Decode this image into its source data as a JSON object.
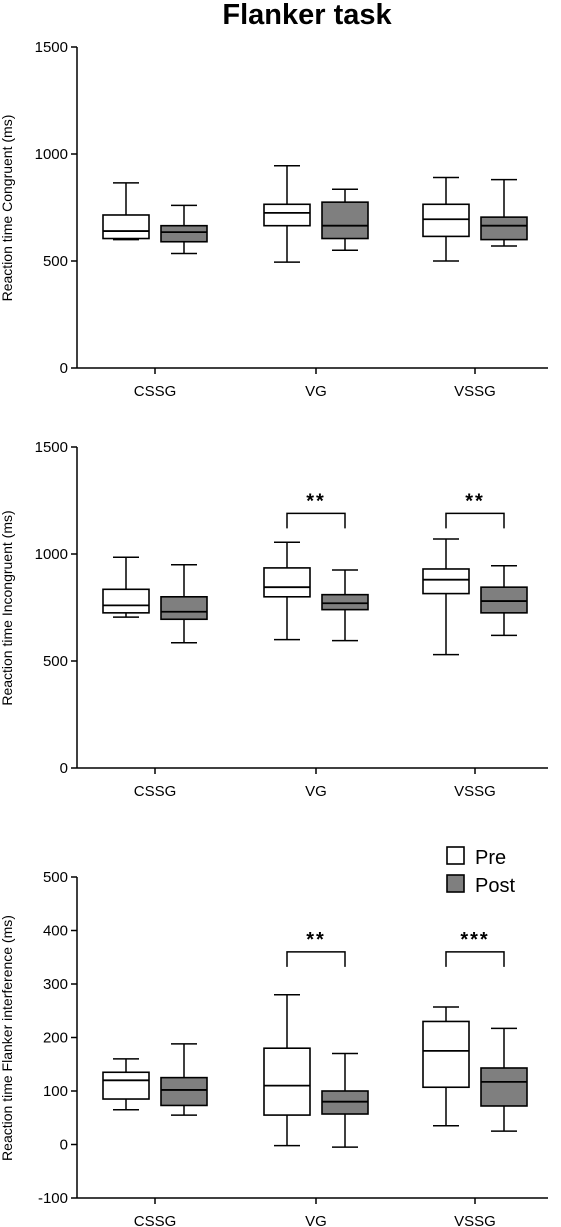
{
  "title": "Flanker task",
  "colors": {
    "pre": "#ffffff",
    "post": "#7f7f7f",
    "stroke": "#000000"
  },
  "legend": {
    "position": "top-right of bottom panel",
    "items": [
      {
        "label": "Pre",
        "color": "#ffffff"
      },
      {
        "label": "Post",
        "color": "#7f7f7f"
      }
    ]
  },
  "chart_data": [
    {
      "type": "boxplot",
      "ylabel": "Reaction time Congruent (ms)",
      "ylim": [
        0,
        1500
      ],
      "yticks": [
        0,
        500,
        1000,
        1500
      ],
      "categories": [
        "CSSG",
        "VG",
        "VSSG"
      ],
      "groups": [
        {
          "category": "CSSG",
          "pre": {
            "min": 600,
            "q1": 605,
            "median": 640,
            "q3": 715,
            "max": 865
          },
          "post": {
            "min": 535,
            "q1": 590,
            "median": 635,
            "q3": 665,
            "max": 760
          }
        },
        {
          "category": "VG",
          "pre": {
            "min": 495,
            "q1": 665,
            "median": 725,
            "q3": 765,
            "max": 945
          },
          "post": {
            "min": 550,
            "q1": 605,
            "median": 665,
            "q3": 775,
            "max": 835
          }
        },
        {
          "category": "VSSG",
          "pre": {
            "min": 500,
            "q1": 615,
            "median": 695,
            "q3": 765,
            "max": 890
          },
          "post": {
            "min": 570,
            "q1": 600,
            "median": 665,
            "q3": 705,
            "max": 880
          }
        }
      ],
      "significance": []
    },
    {
      "type": "boxplot",
      "ylabel": "Reaction time Incongruent (ms)",
      "ylim": [
        0,
        1500
      ],
      "yticks": [
        0,
        500,
        1000,
        1500
      ],
      "categories": [
        "CSSG",
        "VG",
        "VSSG"
      ],
      "groups": [
        {
          "category": "CSSG",
          "pre": {
            "min": 705,
            "q1": 725,
            "median": 760,
            "q3": 835,
            "max": 985
          },
          "post": {
            "min": 585,
            "q1": 695,
            "median": 730,
            "q3": 800,
            "max": 950
          }
        },
        {
          "category": "VG",
          "pre": {
            "min": 600,
            "q1": 800,
            "median": 845,
            "q3": 935,
            "max": 1055
          },
          "post": {
            "min": 595,
            "q1": 740,
            "median": 770,
            "q3": 810,
            "max": 925
          }
        },
        {
          "category": "VSSG",
          "pre": {
            "min": 530,
            "q1": 815,
            "median": 880,
            "q3": 930,
            "max": 1070
          },
          "post": {
            "min": 620,
            "q1": 725,
            "median": 780,
            "q3": 845,
            "max": 945
          }
        }
      ],
      "significance": [
        {
          "category": "VG",
          "label": "**",
          "y": 1190
        },
        {
          "category": "VSSG",
          "label": "**",
          "y": 1190
        }
      ]
    },
    {
      "type": "boxplot",
      "ylabel": "Reaction time Flanker interference (ms)",
      "ylim": [
        -100,
        500
      ],
      "yticks": [
        -100,
        0,
        100,
        200,
        300,
        400,
        500
      ],
      "categories": [
        "CSSG",
        "VG",
        "VSSG"
      ],
      "groups": [
        {
          "category": "CSSG",
          "pre": {
            "min": 65,
            "q1": 85,
            "median": 120,
            "q3": 135,
            "max": 160
          },
          "post": {
            "min": 55,
            "q1": 73,
            "median": 102,
            "q3": 125,
            "max": 188
          }
        },
        {
          "category": "VG",
          "pre": {
            "min": -2,
            "q1": 55,
            "median": 110,
            "q3": 180,
            "max": 280
          },
          "post": {
            "min": -5,
            "q1": 57,
            "median": 80,
            "q3": 100,
            "max": 170
          }
        },
        {
          "category": "VSSG",
          "pre": {
            "min": 35,
            "q1": 107,
            "median": 175,
            "q3": 230,
            "max": 257
          },
          "post": {
            "min": 25,
            "q1": 72,
            "median": 117,
            "q3": 143,
            "max": 217
          }
        }
      ],
      "significance": [
        {
          "category": "VG",
          "label": "**",
          "y": 360
        },
        {
          "category": "VSSG",
          "label": "***",
          "y": 360
        }
      ]
    }
  ]
}
